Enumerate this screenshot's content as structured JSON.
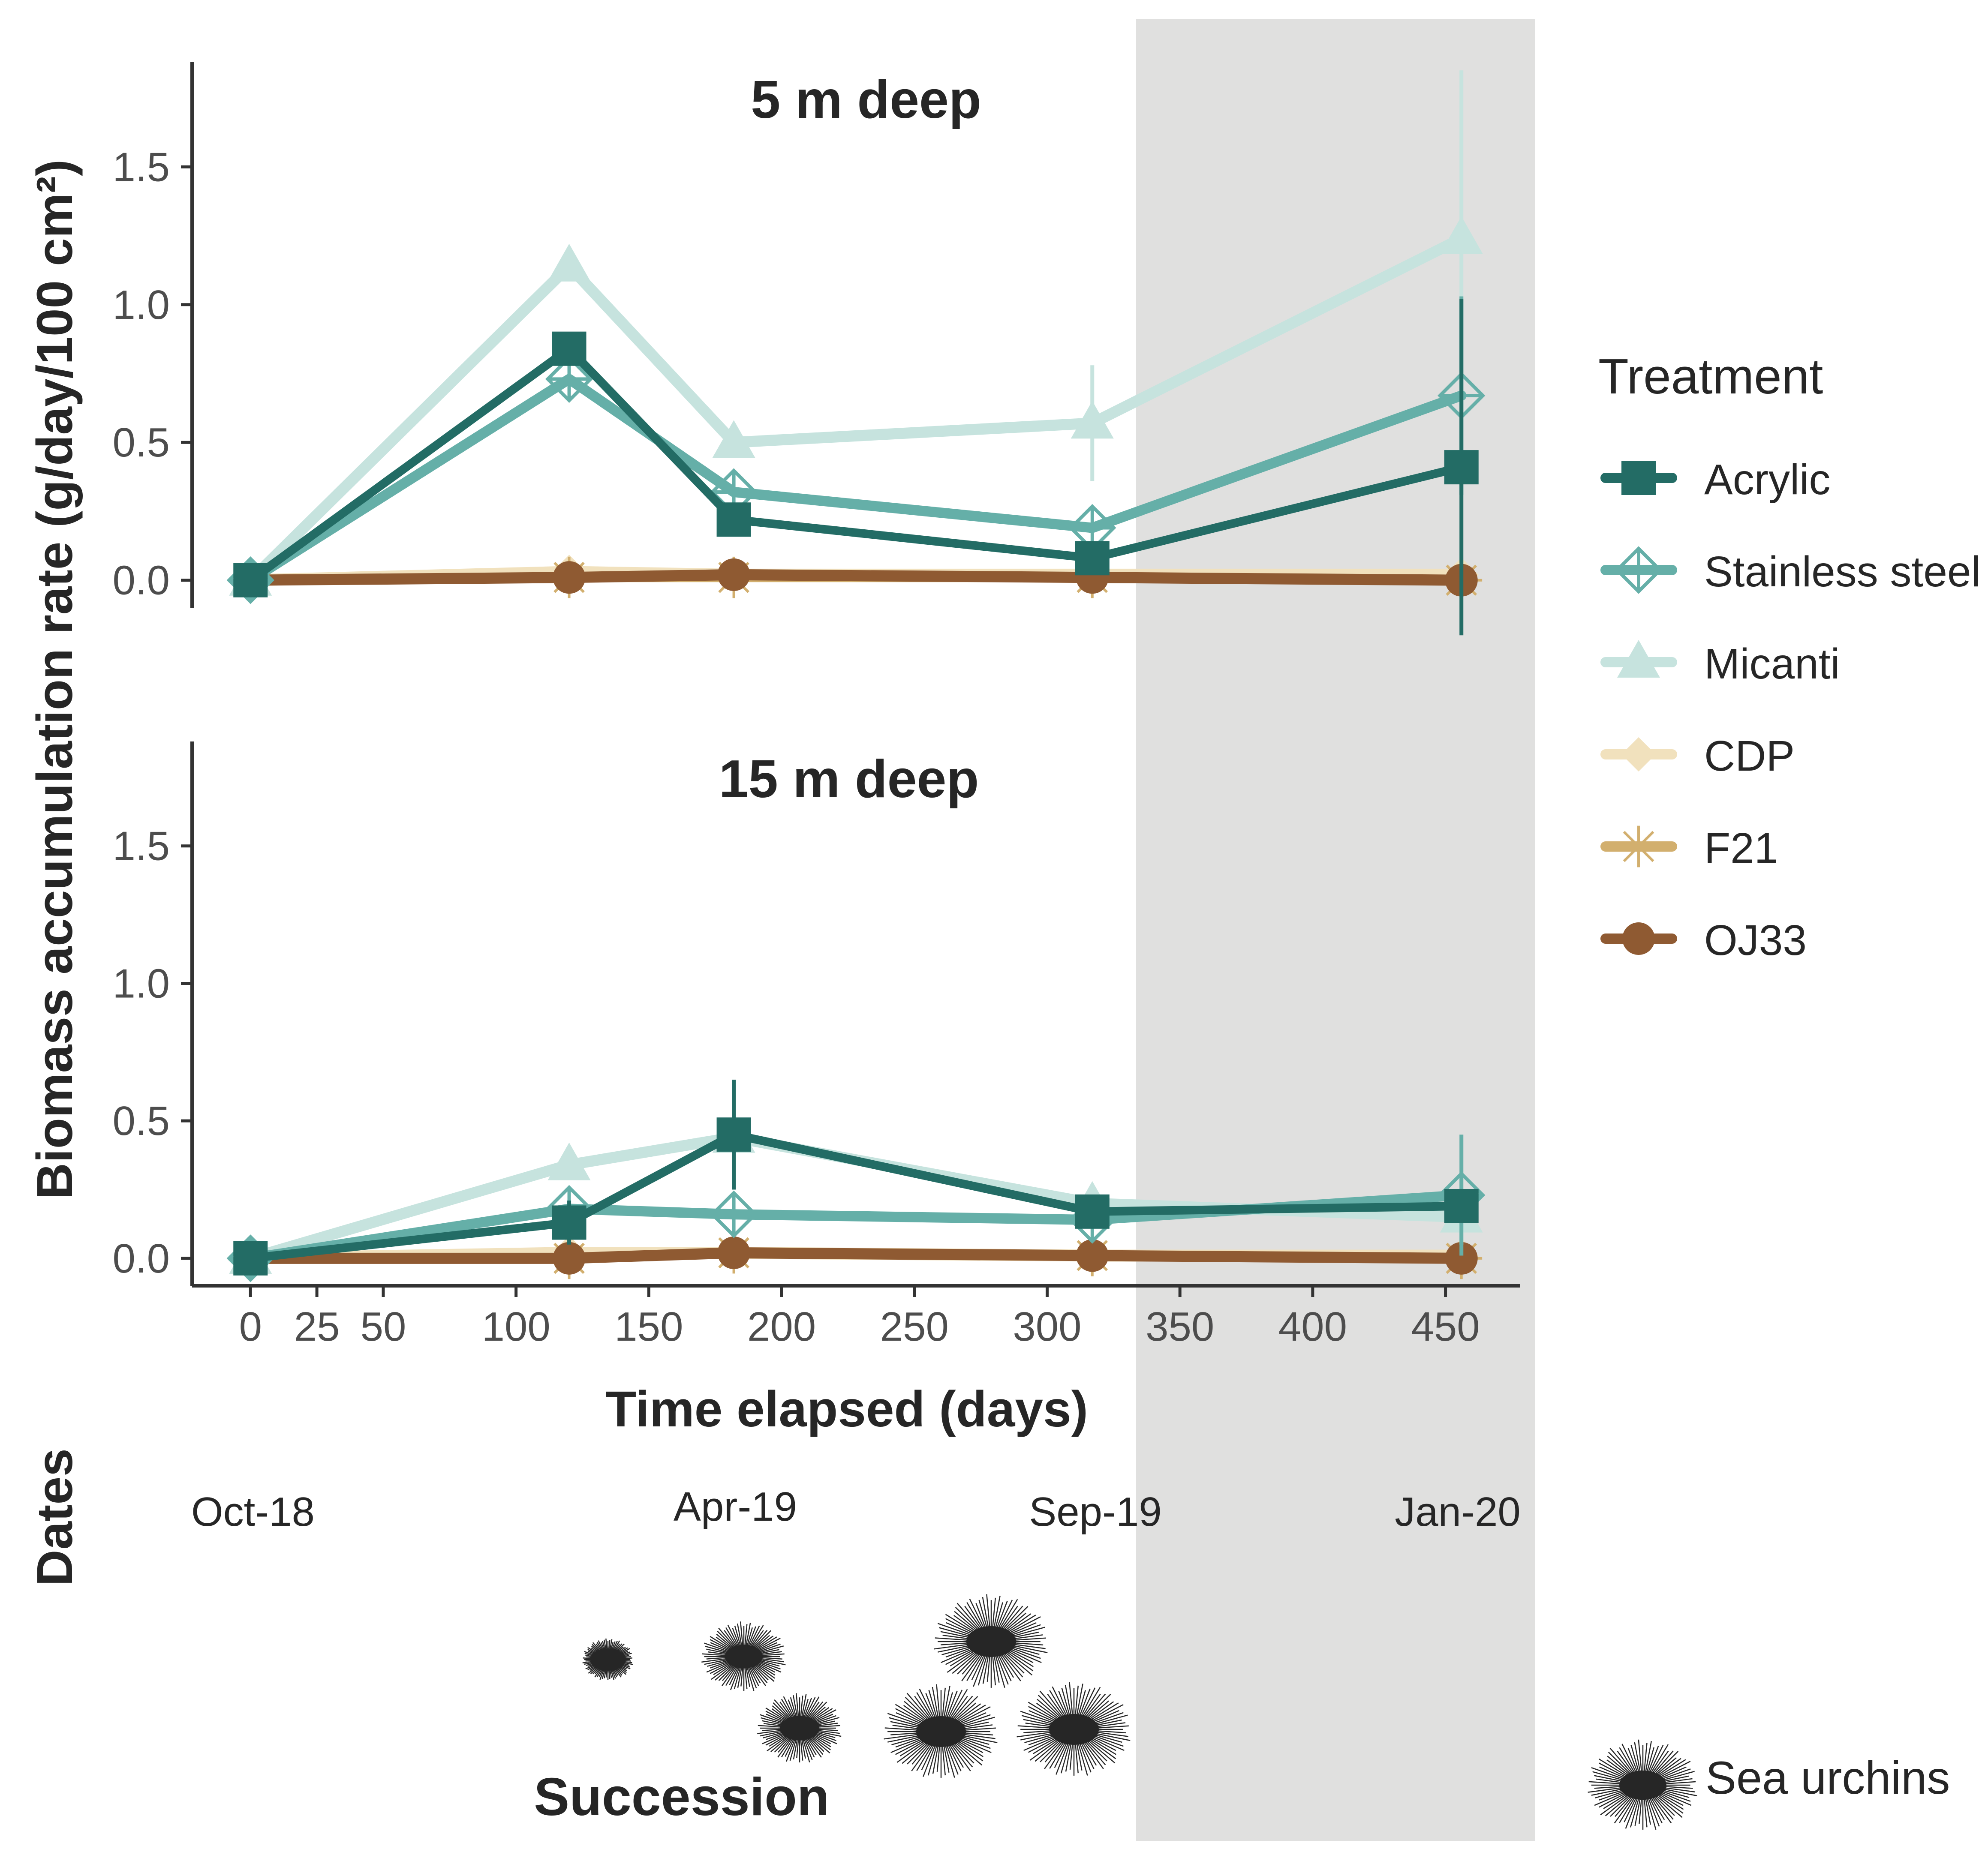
{
  "colors": {
    "shade": "#e0e0df",
    "axis": "#333333",
    "Acrylic": "#236c65",
    "Stainless steel": "#65afa8",
    "Micanti": "#c6e3de",
    "CDP": "#f1e1bd",
    "F21": "#d2af6e",
    "OJ33": "#8f5a32",
    "urchin": "#262626"
  },
  "axis_labels": {
    "y": "Biomass accumulation rate (g/day/100 cm²)",
    "x": "Time elapsed (days)",
    "dates": "Dates"
  },
  "legend": {
    "title": "Treatment",
    "items": [
      {
        "name": "Acrylic",
        "marker": "square-icon"
      },
      {
        "name": "Stainless steel",
        "marker": "diamond-plus-icon"
      },
      {
        "name": "Micanti",
        "marker": "triangle-icon"
      },
      {
        "name": "CDP",
        "marker": "diamond-icon"
      },
      {
        "name": "F21",
        "marker": "asterisk-icon"
      },
      {
        "name": "OJ33",
        "marker": "circle-icon"
      }
    ]
  },
  "dates": [
    "Oct-18",
    "Apr-19",
    "Sep-19",
    "Jan-20"
  ],
  "succession_label": "Succession",
  "urchin_legend_label": "Sea urchins",
  "chart_data": [
    {
      "type": "line",
      "title": "5 m deep",
      "xlabel": "Time elapsed (days)",
      "ylabel": "Biomass accumulation rate (g/day/100 cm²)",
      "x": [
        0,
        120,
        182,
        317,
        456
      ],
      "xlim": [
        -22,
        478
      ],
      "ylim": [
        -0.1,
        1.88
      ],
      "xticks": [
        0,
        25,
        50,
        100,
        150,
        200,
        250,
        300,
        350,
        400,
        450
      ],
      "yticks": [
        0.0,
        0.5,
        1.0,
        1.5
      ],
      "shaded_region_days": [
        332,
        482
      ],
      "series": [
        {
          "name": "Micanti",
          "values": [
            0.0,
            1.14,
            0.5,
            0.57,
            1.24
          ],
          "err": [
            0,
            0,
            0,
            0.21,
            0.61
          ]
        },
        {
          "name": "Acrylic",
          "values": [
            0.0,
            0.84,
            0.22,
            0.08,
            0.41
          ],
          "err": [
            0,
            0,
            0,
            0,
            0.61
          ]
        },
        {
          "name": "Stainless steel",
          "values": [
            0.0,
            0.73,
            0.32,
            0.19,
            0.67
          ],
          "err": [
            0,
            0,
            0,
            0,
            0.36
          ]
        },
        {
          "name": "CDP",
          "values": [
            0.0,
            0.03,
            0.02,
            0.02,
            0.02
          ],
          "err": [
            0,
            0,
            0,
            0,
            0
          ]
        },
        {
          "name": "F21",
          "values": [
            0.0,
            0.01,
            0.01,
            0.01,
            0.0
          ],
          "err": [
            0,
            0,
            0,
            0,
            0
          ]
        },
        {
          "name": "OJ33",
          "values": [
            0.0,
            0.01,
            0.02,
            0.01,
            0.0
          ],
          "err": [
            0,
            0,
            0,
            0,
            0
          ]
        }
      ]
    },
    {
      "type": "line",
      "title": "15 m deep",
      "xlabel": "Time elapsed (days)",
      "ylabel": "Biomass accumulation rate (g/day/100 cm²)",
      "x": [
        0,
        120,
        182,
        317,
        456
      ],
      "xlim": [
        -22,
        478
      ],
      "ylim": [
        -0.1,
        1.88
      ],
      "xticks": [
        0,
        25,
        50,
        100,
        150,
        200,
        250,
        300,
        350,
        400,
        450
      ],
      "yticks": [
        0.0,
        0.5,
        1.0,
        1.5
      ],
      "shaded_region_days": [
        332,
        482
      ],
      "series": [
        {
          "name": "Micanti",
          "values": [
            0.0,
            0.34,
            0.44,
            0.2,
            0.15
          ],
          "err": [
            0,
            0,
            0,
            0,
            0.1
          ]
        },
        {
          "name": "Acrylic",
          "values": [
            0.0,
            0.13,
            0.45,
            0.17,
            0.19
          ],
          "err": [
            0,
            0.08,
            0.2,
            0,
            0
          ]
        },
        {
          "name": "Stainless steel",
          "values": [
            0.0,
            0.18,
            0.16,
            0.14,
            0.23
          ],
          "err": [
            0,
            0,
            0,
            0,
            0.22
          ]
        },
        {
          "name": "CDP",
          "values": [
            0.0,
            0.02,
            0.02,
            0.01,
            0.01
          ],
          "err": [
            0,
            0,
            0,
            0,
            0
          ]
        },
        {
          "name": "F21",
          "values": [
            0.0,
            0.0,
            0.02,
            0.01,
            0.0
          ],
          "err": [
            0,
            0,
            0,
            0,
            0
          ]
        },
        {
          "name": "OJ33",
          "values": [
            0.0,
            0.0,
            0.02,
            0.01,
            0.0
          ],
          "err": [
            0,
            0,
            0,
            0,
            0
          ]
        }
      ]
    }
  ]
}
